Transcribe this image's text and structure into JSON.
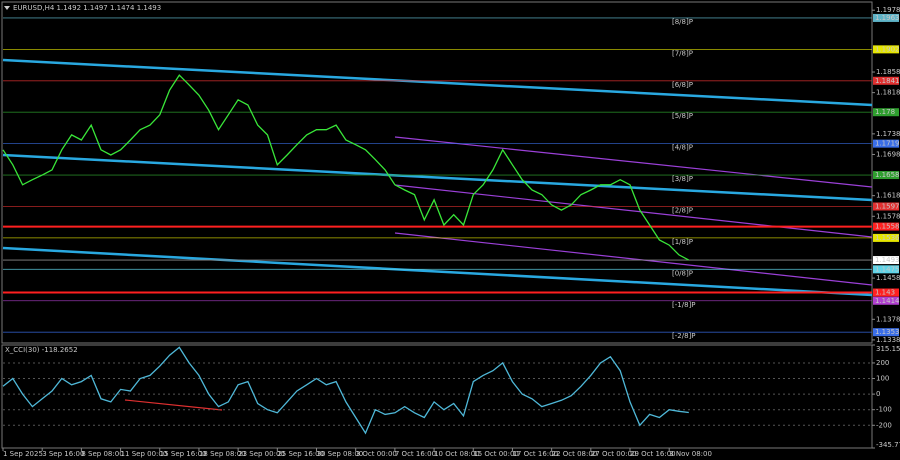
{
  "chart_data": [
    {
      "type": "line",
      "title": "EURUSD,H4  1.1492 1.1497 1.1474 1.1493",
      "xlim": [
        0,
        88.7
      ],
      "ylim": [
        1.1332,
        1.1992
      ],
      "yticks": [
        1.1978,
        1.1858,
        1.1818,
        1.1738,
        1.1698,
        1.1618,
        1.1578,
        1.1458,
        1.1378,
        1.1338
      ],
      "xticks": [
        {
          "value": 0,
          "label": "1 Sep 2025"
        },
        {
          "value": 4,
          "label": "3 Sep 16:00"
        },
        {
          "value": 8,
          "label": "8 Sep 08:00"
        },
        {
          "value": 12,
          "label": "11 Sep 00:00"
        },
        {
          "value": 16,
          "label": "15 Sep 16:00"
        },
        {
          "value": 20,
          "label": "18 Sep 08:00"
        },
        {
          "value": 24,
          "label": "23 Sep 00:00"
        },
        {
          "value": 28,
          "label": "25 Sep 16:00"
        },
        {
          "value": 32,
          "label": "30 Sep 08:00"
        },
        {
          "value": 36,
          "label": "3 Oct 00:00"
        },
        {
          "value": 40,
          "label": "7 Oct 16:00"
        },
        {
          "value": 44,
          "label": "10 Oct 08:00"
        },
        {
          "value": 48,
          "label": "15 Oct 00:00"
        },
        {
          "value": 52,
          "label": "17 Oct 16:00"
        },
        {
          "value": 56,
          "label": "22 Oct 08:00"
        },
        {
          "value": 60,
          "label": "27 Oct 00:00"
        },
        {
          "value": 64,
          "label": "29 Oct 16:00"
        },
        {
          "value": 68,
          "label": "3 Nov 08:00"
        }
      ],
      "series": [
        {
          "color": "#39e639",
          "values": [
            1.1707,
            1.1678,
            1.1639,
            1.1649,
            1.1658,
            1.1668,
            1.1707,
            1.1736,
            1.1726,
            1.1755,
            1.1707,
            1.1697,
            1.1707,
            1.1726,
            1.1746,
            1.1755,
            1.1775,
            1.1823,
            1.1852,
            1.1833,
            1.1813,
            1.1784,
            1.1746,
            1.1775,
            1.1804,
            1.1794,
            1.1755,
            1.1736,
            1.1678,
            1.1697,
            1.1717,
            1.1736,
            1.1746,
            1.1746,
            1.1755,
            1.1726,
            1.1717,
            1.1707,
            1.1688,
            1.1668,
            1.1639,
            1.1629,
            1.162,
            1.1571,
            1.161,
            1.1561,
            1.1581,
            1.1561,
            1.162,
            1.1639,
            1.1668,
            1.1707,
            1.1678,
            1.1649,
            1.1629,
            1.162,
            1.16,
            1.159,
            1.16,
            1.162,
            1.1629,
            1.1639,
            1.1639,
            1.1649,
            1.1639,
            1.159,
            1.1561,
            1.1532,
            1.1522,
            1.1503,
            1.1493
          ]
        }
      ],
      "levels": [
        {
          "name": "[8/8]P",
          "value": 1.1963,
          "color": "#5fb4c8"
        },
        {
          "name": "[7/8]P",
          "value": 1.1902,
          "color": "#e6e600"
        },
        {
          "name": "[6/8]P",
          "value": 1.1841,
          "color": "#e03030"
        },
        {
          "name": "[5/8]P",
          "value": 1.178,
          "color": "#2e9e2e"
        },
        {
          "name": "[4/8]P",
          "value": 1.1719,
          "color": "#3a6ee8"
        },
        {
          "name": "[3/8]P",
          "value": 1.1658,
          "color": "#2e9e2e"
        },
        {
          "name": "[2/8]P",
          "value": 1.1597,
          "color": "#e03030"
        },
        {
          "name": "[1/8]P",
          "value": 1.1536,
          "color": "#e6e600"
        },
        {
          "name": "[0/8]P",
          "value": 1.1475,
          "color": "#5fd4e8"
        },
        {
          "name": "[-1/8]P",
          "value": 1.1414,
          "color": "#b040d0"
        },
        {
          "name": "[-2/8]P",
          "value": 1.1353,
          "color": "#3a6ee8"
        }
      ],
      "hlines": [
        {
          "value": 1.1558,
          "color": "#ff2020"
        },
        {
          "value": 1.143,
          "color": "#ff2020"
        },
        {
          "value": 1.1493,
          "color": "#8a8a8a"
        }
      ]
    },
    {
      "type": "line",
      "title": "X_CCI(30) -118.2652",
      "xlim": [
        0,
        88.7
      ],
      "ylim": [
        -345.7735,
        315.1542
      ],
      "yticks": [
        315.1542,
        200,
        100,
        0,
        -100,
        -200,
        -345.7735
      ],
      "series": [
        {
          "color": "#4fb8d8",
          "values": [
            50,
            100,
            0,
            -80,
            -30,
            20,
            100,
            60,
            80,
            120,
            -30,
            -50,
            30,
            20,
            100,
            120,
            180,
            250,
            300,
            200,
            120,
            0,
            -80,
            -50,
            60,
            80,
            -60,
            -100,
            -120,
            -50,
            20,
            60,
            100,
            60,
            80,
            -50,
            -150,
            -250,
            -100,
            -130,
            -120,
            -80,
            -120,
            -150,
            -50,
            -100,
            -60,
            -140,
            80,
            120,
            150,
            200,
            80,
            0,
            -30,
            -80,
            -60,
            -40,
            -10,
            50,
            120,
            200,
            240,
            150,
            -50,
            -200,
            -130,
            -150,
            -100,
            -110,
            -118
          ]
        }
      ]
    }
  ]
}
